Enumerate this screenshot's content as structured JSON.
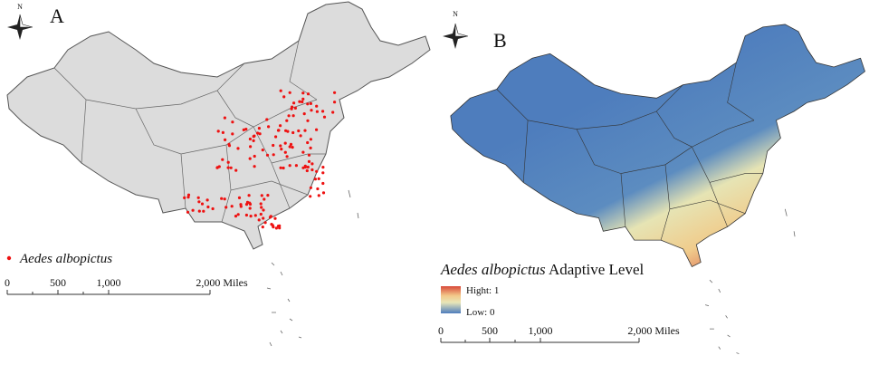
{
  "panel_a": {
    "label": "A",
    "north": "N",
    "legend": "Aedes albopictus",
    "scale": [
      "0",
      "500",
      "1,000",
      "2,000 Miles"
    ]
  },
  "panel_b": {
    "label": "B",
    "north": "N",
    "legend_species": "Aedes albopictus",
    "legend_title": "Adaptive Level",
    "high": "Hight: 1",
    "low": "Low: 0",
    "scale": [
      "0",
      "500",
      "1,000",
      "2,000 Miles"
    ]
  }
}
